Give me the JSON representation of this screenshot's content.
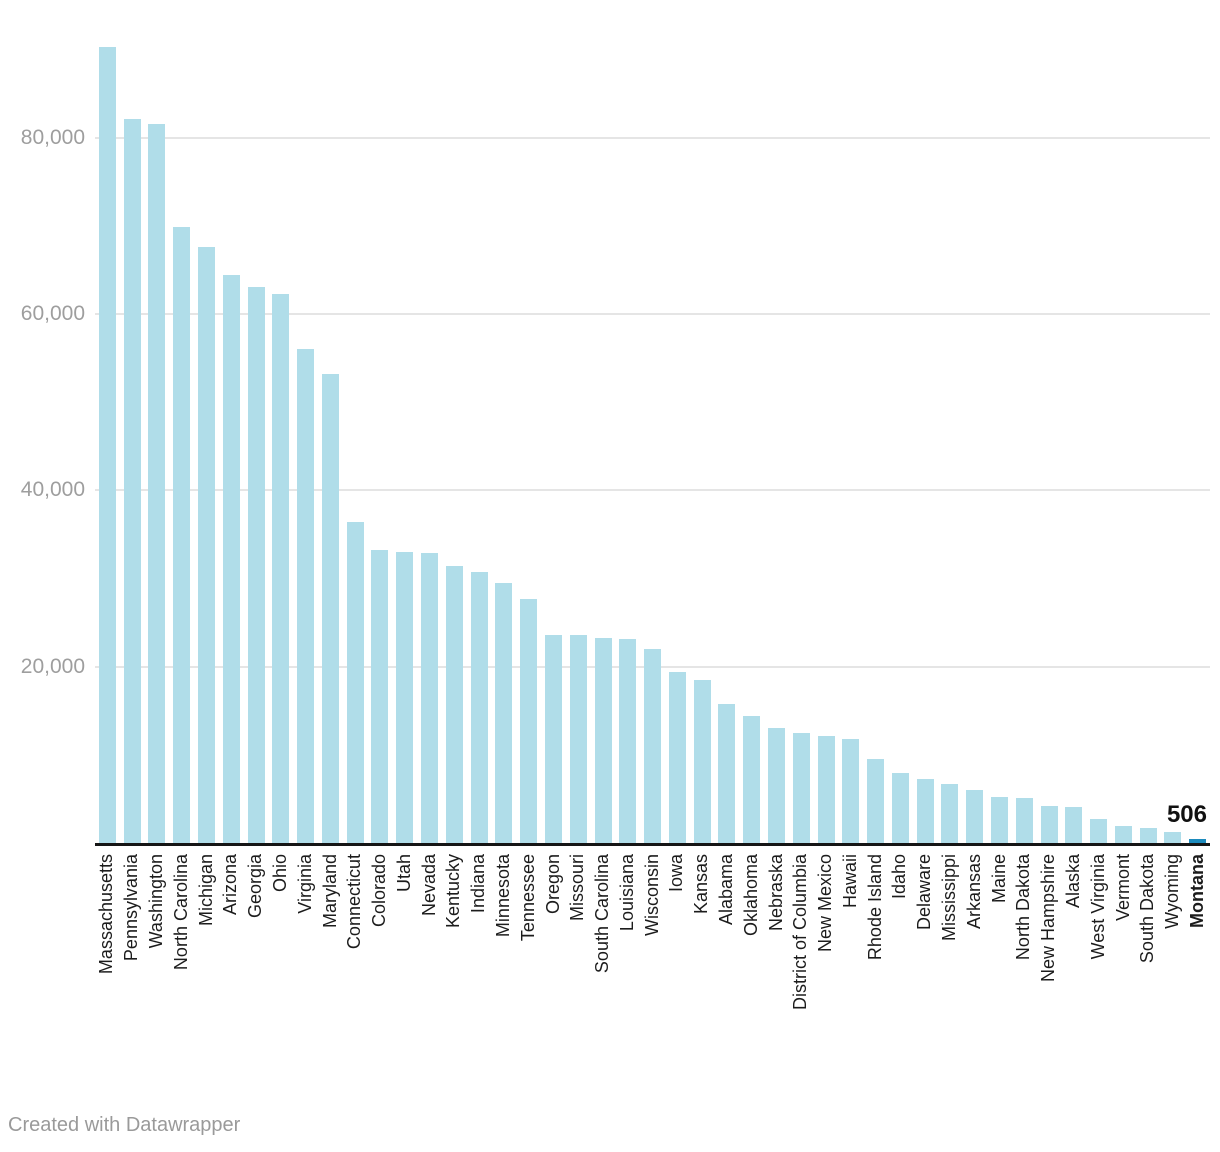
{
  "chart_data": {
    "type": "bar",
    "title": "",
    "categories": [
      "Massachusetts",
      "Pennsylvania",
      "Washington",
      "North Carolina",
      "Michigan",
      "Arizona",
      "Georgia",
      "Ohio",
      "Virginia",
      "Maryland",
      "Connecticut",
      "Colorado",
      "Utah",
      "Nevada",
      "Kentucky",
      "Indiana",
      "Minnesota",
      "Tennessee",
      "Oregon",
      "Missouri",
      "South Carolina",
      "Louisiana",
      "Wisconsin",
      "Iowa",
      "Kansas",
      "Alabama",
      "Oklahoma",
      "Nebraska",
      "District of Columbia",
      "New Mexico",
      "Hawaii",
      "Rhode Island",
      "Idaho",
      "Delaware",
      "Mississippi",
      "Arkansas",
      "Maine",
      "North Dakota",
      "New Hampshire",
      "Alaska",
      "West Virginia",
      "Vermont",
      "South Dakota",
      "Wyoming",
      "Montana"
    ],
    "values": [
      90300,
      82100,
      81600,
      69900,
      67600,
      64400,
      63100,
      62300,
      56100,
      53200,
      36400,
      33200,
      33050,
      32950,
      31400,
      30800,
      29550,
      27650,
      23550,
      23550,
      23250,
      23100,
      22050,
      19450,
      18500,
      15750,
      14400,
      13050,
      12450,
      12100,
      11850,
      9500,
      7900,
      7250,
      6750,
      6050,
      5200,
      5150,
      4250,
      4050,
      2750,
      1950,
      1650,
      1200,
      506
    ],
    "highlight_category": "Montana",
    "value_label": {
      "category": "Montana",
      "text": "506"
    },
    "y_ticks": [
      {
        "value": 20000,
        "label": "20,000"
      },
      {
        "value": 40000,
        "label": "40,000"
      },
      {
        "value": 60000,
        "label": "60,000"
      },
      {
        "value": 80000,
        "label": "80,000"
      }
    ],
    "ylim": [
      0,
      95650
    ],
    "grid": "horizontal",
    "legend": "none",
    "colors": {
      "bar": "#b0dde9",
      "highlight": "#1d8bbd",
      "gridline": "#e5e5e5",
      "axis_line": "#161616",
      "tick_label": "#9e9e9e",
      "x_label": "#1c1c1c"
    }
  },
  "footer": {
    "credit": "Created with Datawrapper"
  }
}
